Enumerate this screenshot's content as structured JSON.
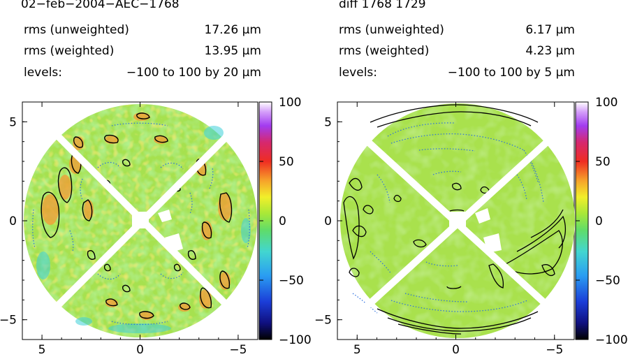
{
  "panels": [
    {
      "title": "02−feb−2004−AEC−1768",
      "rms_unweighted_label": "rms (unweighted)",
      "rms_unweighted_value": "17.26 μm",
      "rms_weighted_label": "rms (weighted)",
      "rms_weighted_value": "13.95 μm",
      "levels_label": "levels:",
      "levels_value": "−100 to 100 by 20 μm"
    },
    {
      "title": "diff 1768 1729",
      "rms_unweighted_label": "rms (unweighted)",
      "rms_unweighted_value": "6.17 μm",
      "rms_weighted_label": "rms (weighted)",
      "rms_weighted_value": "4.23 μm",
      "levels_label": "levels:",
      "levels_value": "−100 to 100 by 5 μm"
    }
  ],
  "chart_data": [
    {
      "type": "heatmap",
      "title": "02−feb−2004−AEC−1768",
      "x_ticks": [
        "5",
        "0",
        "−5"
      ],
      "y_ticks": [
        "5",
        "0",
        "−5"
      ],
      "xlim": [
        6,
        -6
      ],
      "ylim": [
        -6,
        6
      ],
      "colorbar_ticks": [
        "100",
        "50",
        "0",
        "−50",
        "−100"
      ],
      "colorbar_range": [
        -100,
        100
      ],
      "contour_levels": {
        "min": -100,
        "max": 100,
        "step": 20
      },
      "rms_unweighted": 17.26,
      "rms_weighted": 13.95,
      "units": "μm"
    },
    {
      "type": "heatmap",
      "title": "diff 1768 1729",
      "x_ticks": [
        "5",
        "0",
        "−5"
      ],
      "y_ticks": [
        "5",
        "0",
        "−5"
      ],
      "xlim": [
        6,
        -6
      ],
      "ylim": [
        -6,
        6
      ],
      "colorbar_ticks": [
        "100",
        "50",
        "0",
        "−50",
        "−100"
      ],
      "colorbar_range": [
        -100,
        100
      ],
      "contour_levels": {
        "min": -100,
        "max": 100,
        "step": 5
      },
      "rms_unweighted": 6.17,
      "rms_weighted": 4.23,
      "units": "μm"
    }
  ]
}
